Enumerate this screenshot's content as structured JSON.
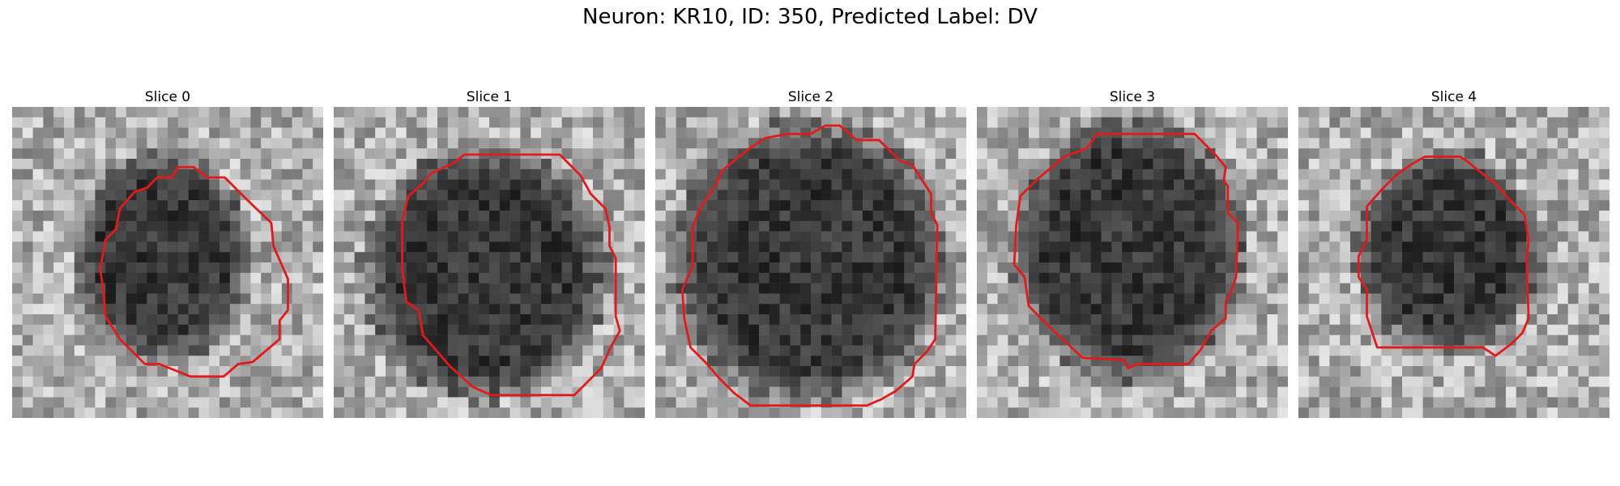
{
  "figure": {
    "title": "Neuron: KR10, ID: 350, Predicted Label: DV"
  },
  "panels": [
    {
      "label": "Slice 0"
    },
    {
      "label": "Slice 1"
    },
    {
      "label": "Slice 2"
    },
    {
      "label": "Slice 3"
    },
    {
      "label": "Slice 4"
    }
  ],
  "colors": {
    "outline": "#e31a1c"
  }
}
